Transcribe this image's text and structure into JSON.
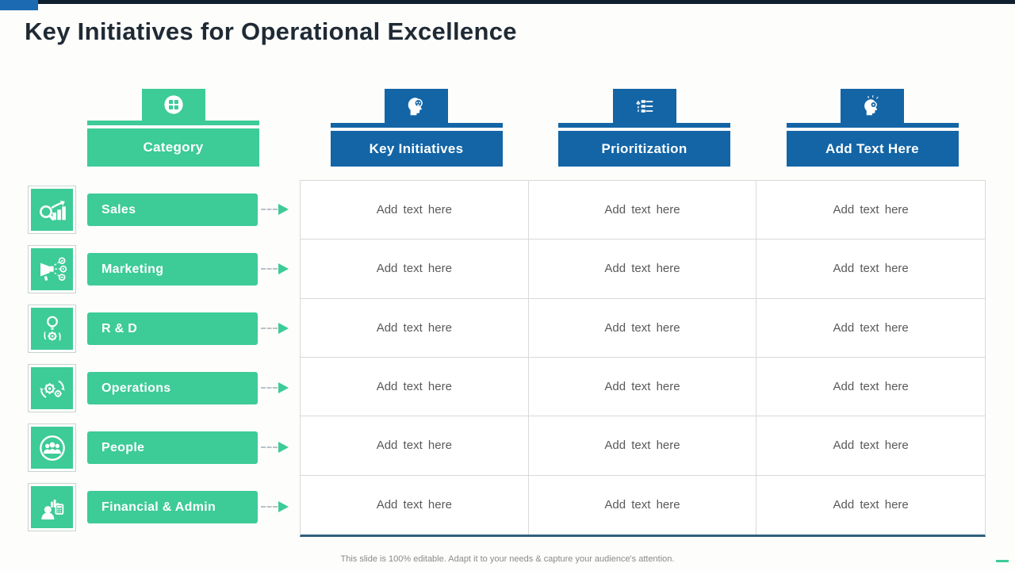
{
  "page": {
    "title": "Key Initiatives for Operational Excellence",
    "footer_note": "This slide is 100% editable. Adapt it to your needs & capture your audience's attention."
  },
  "colors": {
    "green": "#3dcb98",
    "blue": "#1365a6",
    "top_bar": "#0f1f2e",
    "top_accent": "#1c6bb2",
    "title_text": "#1f2a35",
    "cell_text": "#595959",
    "table_border": "#d9d9d9",
    "table_bottom_border": "#2f5f7d",
    "footer_text": "#8a8a8a"
  },
  "category_column": {
    "header_label": "Category",
    "header_icon": "grid-icon",
    "rows": [
      {
        "label": "Sales",
        "icon": "sales-analytics-icon"
      },
      {
        "label": "Marketing",
        "icon": "megaphone-icon"
      },
      {
        "label": "R & D",
        "icon": "bulb-gear-icon"
      },
      {
        "label": "Operations",
        "icon": "process-gears-icon"
      },
      {
        "label": "People",
        "icon": "people-group-icon"
      },
      {
        "label": "Financial & Admin",
        "icon": "finance-admin-icon"
      }
    ]
  },
  "data_columns": [
    {
      "label": "Key Initiatives",
      "icon": "idea-head-icon"
    },
    {
      "label": "Prioritization",
      "icon": "priority-sliders-icon"
    },
    {
      "label": "Add Text Here",
      "icon": "brainstorm-head-icon"
    }
  ],
  "table": {
    "rows": 6,
    "columns": 3,
    "placeholder": "Add text here"
  }
}
